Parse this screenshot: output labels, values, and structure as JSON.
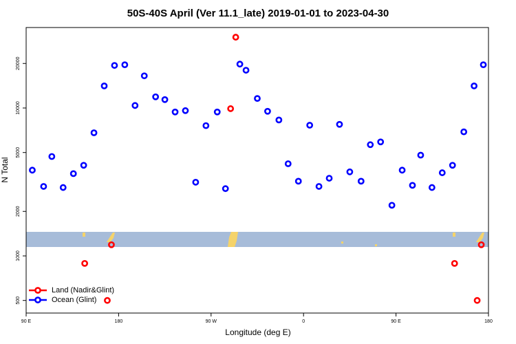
{
  "chart_data": {
    "type": "scatter",
    "title": "50S-40S April (Ver 11.1_late)   2019-01-01 to 2023-04-30",
    "x_label": "Longitude (deg E)",
    "y_label": "N Total",
    "log_y": true,
    "legend_position": "lower left",
    "xlim": [
      90,
      540
    ],
    "xticks": [
      {
        "value": 90,
        "label": "90 E"
      },
      {
        "value": 180,
        "label": "180"
      },
      {
        "value": 270,
        "label": "90 W"
      },
      {
        "value": 360,
        "label": "0"
      },
      {
        "value": 450,
        "label": "90 E"
      },
      {
        "value": 540,
        "label": "180"
      }
    ],
    "ylim": [
      411,
      35000
    ],
    "yticks": [
      500,
      1000,
      2000,
      5000,
      10000,
      20000
    ],
    "series": [
      {
        "name": "Land (Nadir&Glint)",
        "color": "#ff0000",
        "x": [
          147,
          173,
          169,
          294,
          289,
          507,
          533,
          529
        ],
        "values": [
          890,
          1190,
          500,
          30100,
          9900,
          890,
          1190,
          500
        ]
      },
      {
        "name": "Ocean (Glint)",
        "color": "#0000ff",
        "x": [
          96,
          107,
          115,
          126,
          136,
          146,
          156,
          166,
          176,
          186,
          196,
          205,
          216,
          225,
          235,
          245,
          255,
          265,
          276,
          284,
          298,
          304,
          315,
          325,
          336,
          345,
          355,
          366,
          375,
          385,
          395,
          405,
          416,
          425,
          435,
          446,
          456,
          466,
          474,
          485,
          495,
          505,
          516,
          526,
          535
        ],
        "values": [
          3800,
          2950,
          4700,
          2900,
          3600,
          4100,
          6800,
          14100,
          19400,
          19600,
          10400,
          16500,
          11900,
          11400,
          9400,
          9600,
          3150,
          7600,
          9400,
          2850,
          19800,
          18000,
          11600,
          9500,
          8300,
          4200,
          3200,
          7650,
          2950,
          3350,
          7750,
          3700,
          3200,
          5650,
          5900,
          2200,
          3800,
          3000,
          4800,
          2900,
          3650,
          4100,
          6900,
          14100,
          19600
        ]
      }
    ]
  }
}
